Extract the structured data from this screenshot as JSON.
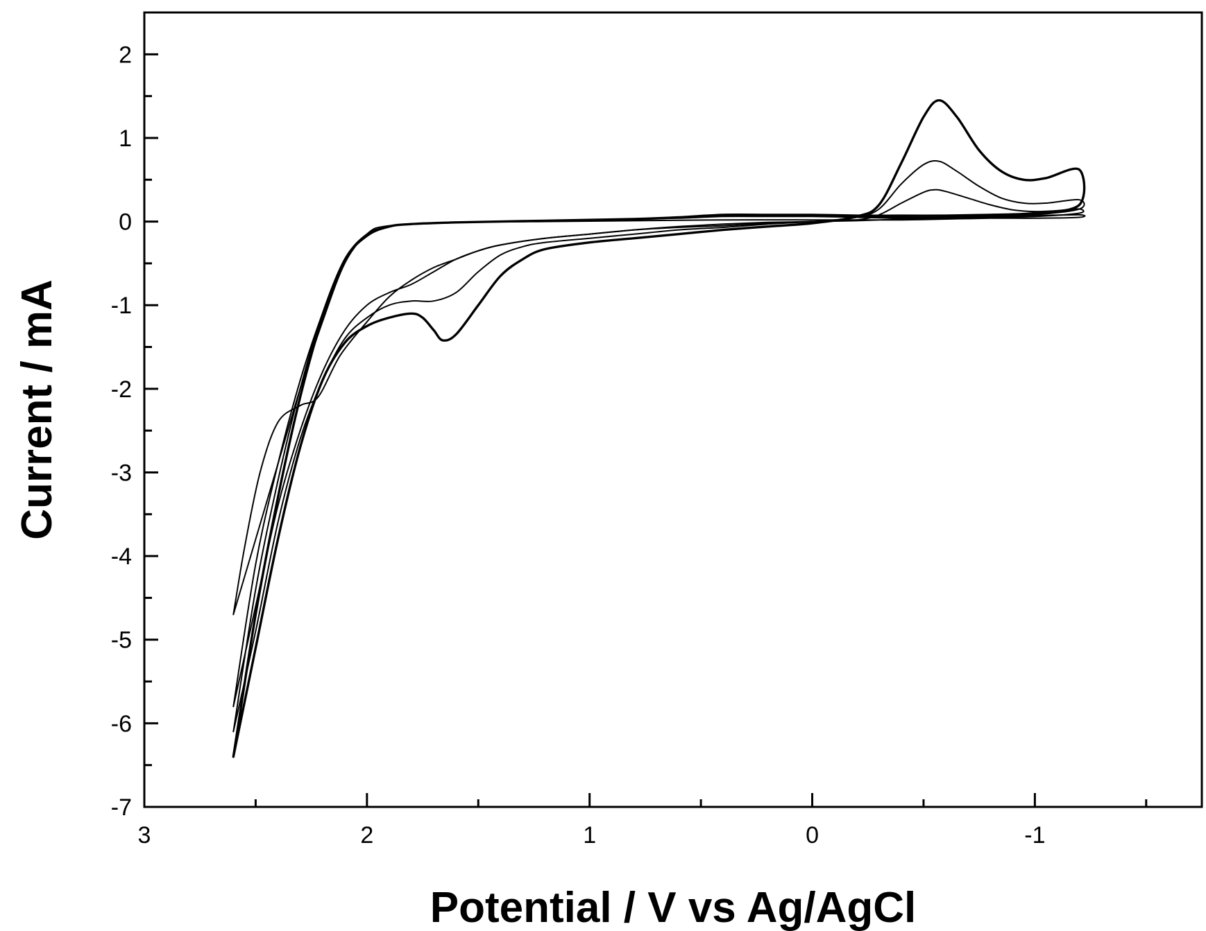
{
  "chart_data": {
    "type": "line",
    "title": "",
    "xlabel": "Potential / V vs Ag/AgCl",
    "ylabel": "Current / mA",
    "xlim": [
      3,
      -1.75
    ],
    "ylim": [
      -7,
      2.5
    ],
    "x_reversed": true,
    "x_ticks": [
      3,
      2,
      1,
      0,
      -1
    ],
    "x_tick_labels": [
      "3",
      "2",
      "1",
      "0",
      "-1"
    ],
    "y_ticks": [
      2,
      1,
      0,
      -1,
      -2,
      -3,
      -4,
      -5,
      -6,
      -7
    ],
    "y_tick_labels": [
      "2",
      "1",
      "0",
      "-1",
      "-2",
      "-3",
      "-4",
      "-5",
      "-6",
      "-7"
    ],
    "grid": false,
    "legend": "none",
    "line_color": "#000000",
    "series": [
      {
        "values": [
          [
            2.6,
            -4.7
          ],
          [
            2.55,
            -3.9
          ],
          [
            2.48,
            -3.0
          ],
          [
            2.4,
            -2.4
          ],
          [
            2.3,
            -2.2
          ],
          [
            2.22,
            -2.1
          ],
          [
            2.12,
            -1.6
          ],
          [
            2.0,
            -1.2
          ],
          [
            1.9,
            -0.9
          ],
          [
            1.8,
            -0.7
          ],
          [
            1.7,
            -0.55
          ],
          [
            1.6,
            -0.45
          ],
          [
            1.5,
            -0.35
          ],
          [
            1.4,
            -0.28
          ],
          [
            1.2,
            -0.2
          ],
          [
            1.0,
            -0.15
          ],
          [
            0.8,
            -0.1
          ],
          [
            0.6,
            -0.06
          ],
          [
            0.4,
            -0.03
          ],
          [
            0.2,
            -0.01
          ],
          [
            0.0,
            0.0
          ],
          [
            -0.2,
            0.01
          ],
          [
            -0.4,
            0.03
          ],
          [
            -0.6,
            0.05
          ],
          [
            -0.8,
            0.06
          ],
          [
            -1.0,
            0.07
          ],
          [
            -1.2,
            0.08
          ],
          [
            -1.2,
            0.05
          ],
          [
            -1.0,
            0.04
          ],
          [
            -0.8,
            0.04
          ],
          [
            -0.6,
            0.03
          ],
          [
            -0.4,
            0.02
          ],
          [
            -0.2,
            0.02
          ],
          [
            0.0,
            0.02
          ],
          [
            0.4,
            0.02
          ],
          [
            0.8,
            0.01
          ],
          [
            1.2,
            0.0
          ],
          [
            1.6,
            -0.01
          ],
          [
            1.9,
            -0.05
          ],
          [
            2.0,
            -0.15
          ],
          [
            2.1,
            -0.5
          ],
          [
            2.2,
            -1.2
          ],
          [
            2.3,
            -2.0
          ],
          [
            2.4,
            -2.9
          ],
          [
            2.5,
            -3.8
          ],
          [
            2.6,
            -4.7
          ]
        ]
      },
      {
        "values": [
          [
            2.6,
            -5.8
          ],
          [
            2.5,
            -4.6
          ],
          [
            2.4,
            -3.4
          ],
          [
            2.3,
            -2.5
          ],
          [
            2.2,
            -1.8
          ],
          [
            2.1,
            -1.3
          ],
          [
            2.0,
            -1.0
          ],
          [
            1.9,
            -0.85
          ],
          [
            1.8,
            -0.75
          ],
          [
            1.7,
            -0.6
          ],
          [
            1.6,
            -0.45
          ],
          [
            1.5,
            -0.35
          ],
          [
            1.4,
            -0.28
          ],
          [
            1.2,
            -0.2
          ],
          [
            1.0,
            -0.15
          ],
          [
            0.8,
            -0.1
          ],
          [
            0.6,
            -0.07
          ],
          [
            0.4,
            -0.05
          ],
          [
            0.2,
            -0.02
          ],
          [
            0.0,
            0.0
          ],
          [
            -0.2,
            0.02
          ],
          [
            -0.3,
            0.08
          ],
          [
            -0.4,
            0.22
          ],
          [
            -0.5,
            0.35
          ],
          [
            -0.55,
            0.38
          ],
          [
            -0.6,
            0.36
          ],
          [
            -0.7,
            0.28
          ],
          [
            -0.8,
            0.2
          ],
          [
            -0.9,
            0.14
          ],
          [
            -1.0,
            0.12
          ],
          [
            -1.1,
            0.13
          ],
          [
            -1.2,
            0.15
          ],
          [
            -1.2,
            0.1
          ],
          [
            -1.0,
            0.06
          ],
          [
            -0.8,
            0.05
          ],
          [
            -0.6,
            0.04
          ],
          [
            -0.4,
            0.04
          ],
          [
            -0.2,
            0.05
          ],
          [
            0.0,
            0.06
          ],
          [
            0.2,
            0.06
          ],
          [
            0.4,
            0.06
          ],
          [
            0.6,
            0.04
          ],
          [
            0.8,
            0.03
          ],
          [
            1.0,
            0.02
          ],
          [
            1.2,
            0.01
          ],
          [
            1.4,
            0.0
          ],
          [
            1.6,
            -0.01
          ],
          [
            1.8,
            -0.03
          ],
          [
            1.9,
            -0.06
          ],
          [
            2.0,
            -0.15
          ],
          [
            2.1,
            -0.45
          ],
          [
            2.2,
            -1.1
          ],
          [
            2.3,
            -1.9
          ],
          [
            2.4,
            -2.9
          ],
          [
            2.5,
            -4.1
          ],
          [
            2.6,
            -5.8
          ]
        ]
      },
      {
        "values": [
          [
            2.6,
            -6.1
          ],
          [
            2.5,
            -4.9
          ],
          [
            2.4,
            -3.6
          ],
          [
            2.3,
            -2.6
          ],
          [
            2.2,
            -1.9
          ],
          [
            2.1,
            -1.4
          ],
          [
            2.0,
            -1.15
          ],
          [
            1.9,
            -1.0
          ],
          [
            1.8,
            -0.95
          ],
          [
            1.7,
            -0.95
          ],
          [
            1.6,
            -0.85
          ],
          [
            1.5,
            -0.6
          ],
          [
            1.4,
            -0.4
          ],
          [
            1.3,
            -0.3
          ],
          [
            1.2,
            -0.25
          ],
          [
            1.0,
            -0.2
          ],
          [
            0.8,
            -0.15
          ],
          [
            0.6,
            -0.1
          ],
          [
            0.4,
            -0.07
          ],
          [
            0.2,
            -0.03
          ],
          [
            0.0,
            0.0
          ],
          [
            -0.2,
            0.05
          ],
          [
            -0.3,
            0.15
          ],
          [
            -0.4,
            0.45
          ],
          [
            -0.5,
            0.68
          ],
          [
            -0.57,
            0.72
          ],
          [
            -0.65,
            0.6
          ],
          [
            -0.75,
            0.42
          ],
          [
            -0.85,
            0.28
          ],
          [
            -0.95,
            0.22
          ],
          [
            -1.05,
            0.22
          ],
          [
            -1.2,
            0.26
          ],
          [
            -1.2,
            0.15
          ],
          [
            -1.0,
            0.08
          ],
          [
            -0.8,
            0.06
          ],
          [
            -0.6,
            0.05
          ],
          [
            -0.4,
            0.05
          ],
          [
            -0.2,
            0.06
          ],
          [
            0.0,
            0.07
          ],
          [
            0.2,
            0.07
          ],
          [
            0.4,
            0.07
          ],
          [
            0.6,
            0.05
          ],
          [
            0.8,
            0.03
          ],
          [
            1.0,
            0.02
          ],
          [
            1.2,
            0.01
          ],
          [
            1.4,
            0.0
          ],
          [
            1.6,
            -0.01
          ],
          [
            1.8,
            -0.03
          ],
          [
            1.9,
            -0.06
          ],
          [
            2.0,
            -0.16
          ],
          [
            2.1,
            -0.45
          ],
          [
            2.2,
            -1.1
          ],
          [
            2.3,
            -2.0
          ],
          [
            2.4,
            -3.1
          ],
          [
            2.5,
            -4.4
          ],
          [
            2.6,
            -6.1
          ]
        ]
      },
      {
        "values": [
          [
            2.6,
            -6.4
          ],
          [
            2.5,
            -5.1
          ],
          [
            2.4,
            -3.8
          ],
          [
            2.3,
            -2.7
          ],
          [
            2.2,
            -1.9
          ],
          [
            2.1,
            -1.45
          ],
          [
            2.0,
            -1.25
          ],
          [
            1.9,
            -1.15
          ],
          [
            1.8,
            -1.1
          ],
          [
            1.75,
            -1.15
          ],
          [
            1.7,
            -1.3
          ],
          [
            1.66,
            -1.42
          ],
          [
            1.6,
            -1.35
          ],
          [
            1.5,
            -1.0
          ],
          [
            1.4,
            -0.65
          ],
          [
            1.3,
            -0.45
          ],
          [
            1.2,
            -0.33
          ],
          [
            1.0,
            -0.25
          ],
          [
            0.8,
            -0.2
          ],
          [
            0.6,
            -0.15
          ],
          [
            0.4,
            -0.1
          ],
          [
            0.2,
            -0.06
          ],
          [
            0.0,
            -0.02
          ],
          [
            -0.2,
            0.06
          ],
          [
            -0.3,
            0.2
          ],
          [
            -0.4,
            0.7
          ],
          [
            -0.5,
            1.25
          ],
          [
            -0.57,
            1.45
          ],
          [
            -0.65,
            1.25
          ],
          [
            -0.75,
            0.85
          ],
          [
            -0.85,
            0.6
          ],
          [
            -0.95,
            0.5
          ],
          [
            -1.05,
            0.52
          ],
          [
            -1.2,
            0.62
          ],
          [
            -1.2,
            0.2
          ],
          [
            -1.0,
            0.1
          ],
          [
            -0.8,
            0.08
          ],
          [
            -0.6,
            0.07
          ],
          [
            -0.4,
            0.07
          ],
          [
            -0.2,
            0.07
          ],
          [
            0.0,
            0.08
          ],
          [
            0.2,
            0.08
          ],
          [
            0.4,
            0.08
          ],
          [
            0.6,
            0.05
          ],
          [
            0.8,
            0.03
          ],
          [
            1.0,
            0.02
          ],
          [
            1.2,
            0.01
          ],
          [
            1.4,
            0.0
          ],
          [
            1.6,
            -0.01
          ],
          [
            1.8,
            -0.03
          ],
          [
            1.9,
            -0.06
          ],
          [
            2.0,
            -0.17
          ],
          [
            2.1,
            -0.46
          ],
          [
            2.2,
            -1.15
          ],
          [
            2.3,
            -2.1
          ],
          [
            2.4,
            -3.3
          ],
          [
            2.5,
            -4.7
          ],
          [
            2.6,
            -6.4
          ]
        ]
      }
    ]
  }
}
